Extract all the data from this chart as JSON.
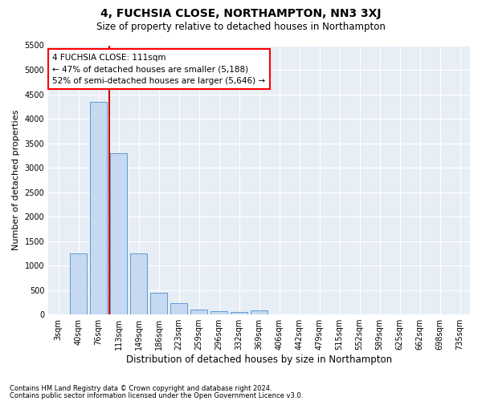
{
  "title": "4, FUCHSIA CLOSE, NORTHAMPTON, NN3 3XJ",
  "subtitle": "Size of property relative to detached houses in Northampton",
  "xlabel": "Distribution of detached houses by size in Northampton",
  "ylabel": "Number of detached properties",
  "footnote1": "Contains HM Land Registry data © Crown copyright and database right 2024.",
  "footnote2": "Contains public sector information licensed under the Open Government Licence v3.0.",
  "bar_labels": [
    "3sqm",
    "40sqm",
    "76sqm",
    "113sqm",
    "149sqm",
    "186sqm",
    "223sqm",
    "259sqm",
    "296sqm",
    "332sqm",
    "369sqm",
    "406sqm",
    "442sqm",
    "479sqm",
    "515sqm",
    "552sqm",
    "589sqm",
    "625sqm",
    "662sqm",
    "698sqm",
    "735sqm"
  ],
  "bar_values": [
    0,
    1250,
    4350,
    3300,
    1250,
    450,
    225,
    100,
    75,
    50,
    80,
    0,
    0,
    0,
    0,
    0,
    0,
    0,
    0,
    0,
    0
  ],
  "bar_color": "#c6d9f0",
  "bar_edge_color": "#5b9bd5",
  "annotation_text_line1": "4 FUCHSIA CLOSE: 111sqm",
  "annotation_text_line2": "← 47% of detached houses are smaller (5,188)",
  "annotation_text_line3": "52% of semi-detached houses are larger (5,646) →",
  "vline_x": 2.55,
  "vline_color": "#cc0000",
  "ylim_max": 5500,
  "yticks": [
    0,
    500,
    1000,
    1500,
    2000,
    2500,
    3000,
    3500,
    4000,
    4500,
    5000,
    5500
  ],
  "plot_bg_color": "#e8eef5",
  "grid_color": "#ffffff",
  "title_fontsize": 10,
  "subtitle_fontsize": 8.5,
  "ylabel_fontsize": 8,
  "xlabel_fontsize": 8.5,
  "tick_fontsize": 7,
  "annot_fontsize": 7.5,
  "footnote_fontsize": 6
}
